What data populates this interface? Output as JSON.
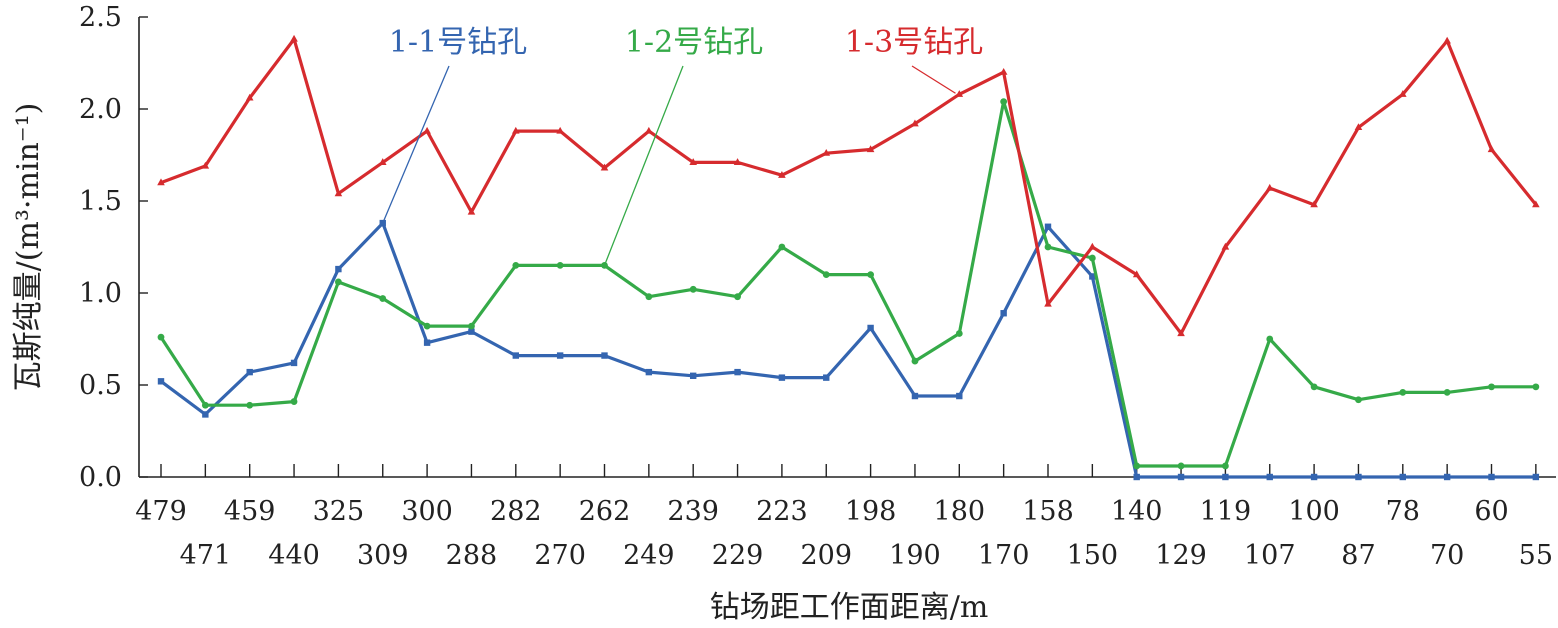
{
  "chart_data": {
    "type": "line",
    "xlabel": "钻场距工作面距离/m",
    "ylabel": "瓦斯纯量/(m³·min⁻¹)",
    "ylim": [
      0,
      2.5
    ],
    "yticks": [
      "0.0",
      "0.5",
      "1.0",
      "1.5",
      "2.0",
      "2.5"
    ],
    "grid": false,
    "x": [
      "479",
      "471",
      "459",
      "440",
      "325",
      "309",
      "300",
      "288",
      "282",
      "270",
      "262",
      "249",
      "239",
      "229",
      "223",
      "209",
      "198",
      "190",
      "180",
      "170",
      "158",
      "150",
      "140",
      "129",
      "119",
      "107",
      "100",
      "87",
      "78",
      "70",
      "60",
      "55"
    ],
    "series": [
      {
        "name": "1-1号钻孔",
        "color": "#3465b0",
        "marker": "square",
        "values": [
          0.52,
          0.34,
          0.57,
          0.62,
          1.13,
          1.38,
          0.73,
          0.79,
          0.66,
          0.66,
          0.66,
          0.57,
          0.55,
          0.57,
          0.54,
          0.54,
          0.81,
          0.44,
          0.44,
          0.89,
          1.36,
          1.09,
          0.0,
          0.0,
          0.0,
          0.0,
          0.0,
          0.0,
          0.0,
          0.0,
          0.0,
          0.0
        ]
      },
      {
        "name": "1-2号钻孔",
        "color": "#35aa48",
        "marker": "circle",
        "values": [
          0.76,
          0.39,
          0.39,
          0.41,
          1.06,
          0.97,
          0.82,
          0.82,
          1.15,
          1.15,
          1.15,
          0.98,
          1.02,
          0.98,
          1.25,
          1.1,
          1.1,
          0.63,
          0.78,
          2.04,
          1.25,
          1.19,
          0.06,
          0.06,
          0.06,
          0.75,
          0.49,
          0.42,
          0.46,
          0.46,
          0.49,
          0.49
        ]
      },
      {
        "name": "1-3号钻孔",
        "color": "#d62b2e",
        "marker": "triangle",
        "values": [
          1.6,
          1.69,
          2.06,
          2.38,
          1.54,
          1.71,
          1.88,
          1.44,
          1.88,
          1.88,
          1.68,
          1.88,
          1.71,
          1.71,
          1.64,
          1.76,
          1.78,
          1.92,
          2.08,
          2.2,
          0.94,
          1.25,
          1.1,
          0.78,
          1.25,
          1.57,
          1.48,
          1.9,
          2.08,
          2.37,
          1.78,
          1.48
        ]
      }
    ]
  }
}
